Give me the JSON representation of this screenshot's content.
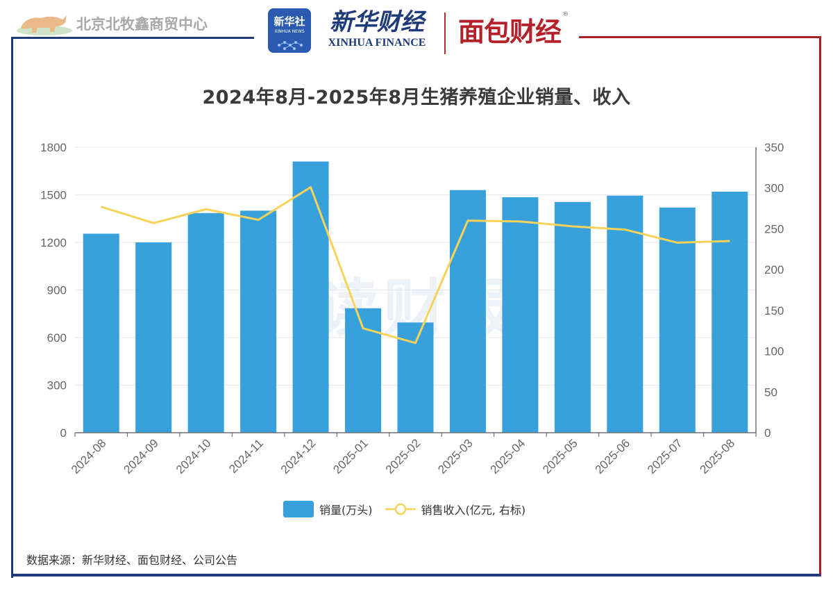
{
  "header": {
    "center_name": "北京北牧鑫商贸中心",
    "xinhua_badge": "新华社",
    "xinhua_badge_en": "XINHUA NEWS",
    "xinhua_finance_cn": "新华财经",
    "xinhua_finance_en": "XINHUA FINANCE",
    "mianbao": "面包财经",
    "registered_mark": "®"
  },
  "chart_data": {
    "type": "bar",
    "title": "2024年8月-2025年8月生猪养殖企业销量、收入",
    "categories": [
      "2024-08",
      "2024-09",
      "2024-10",
      "2024-11",
      "2024-12",
      "2025-01",
      "2025-02",
      "2025-03",
      "2025-04",
      "2025-05",
      "2025-06",
      "2025-07",
      "2025-08"
    ],
    "series": [
      {
        "name": "销量(万头)",
        "type": "bar",
        "axis": "left",
        "color": "#38a1db",
        "values": [
          1255,
          1200,
          1385,
          1400,
          1710,
          785,
          695,
          1530,
          1485,
          1455,
          1495,
          1420,
          1520
        ]
      },
      {
        "name": "销售收入(亿元, 右标)",
        "type": "line",
        "axis": "right",
        "color": "#f7d35a",
        "values": [
          277,
          257,
          274,
          261,
          301,
          128,
          110,
          260,
          259,
          253,
          249,
          233,
          235
        ]
      }
    ],
    "left_axis": {
      "ylim": [
        0,
        1800
      ],
      "ticks": [
        "0",
        "300",
        "600",
        "900",
        "1200",
        "1500",
        "1800"
      ]
    },
    "right_axis": {
      "ylim": [
        0,
        350
      ],
      "ticks": [
        "0",
        "50",
        "100",
        "150",
        "200",
        "250",
        "300",
        "350"
      ]
    },
    "grid": true,
    "legend_position": "bottom-center",
    "watermark": "读财报"
  },
  "source": "数据来源：新华财经、面包财经、公司公告"
}
